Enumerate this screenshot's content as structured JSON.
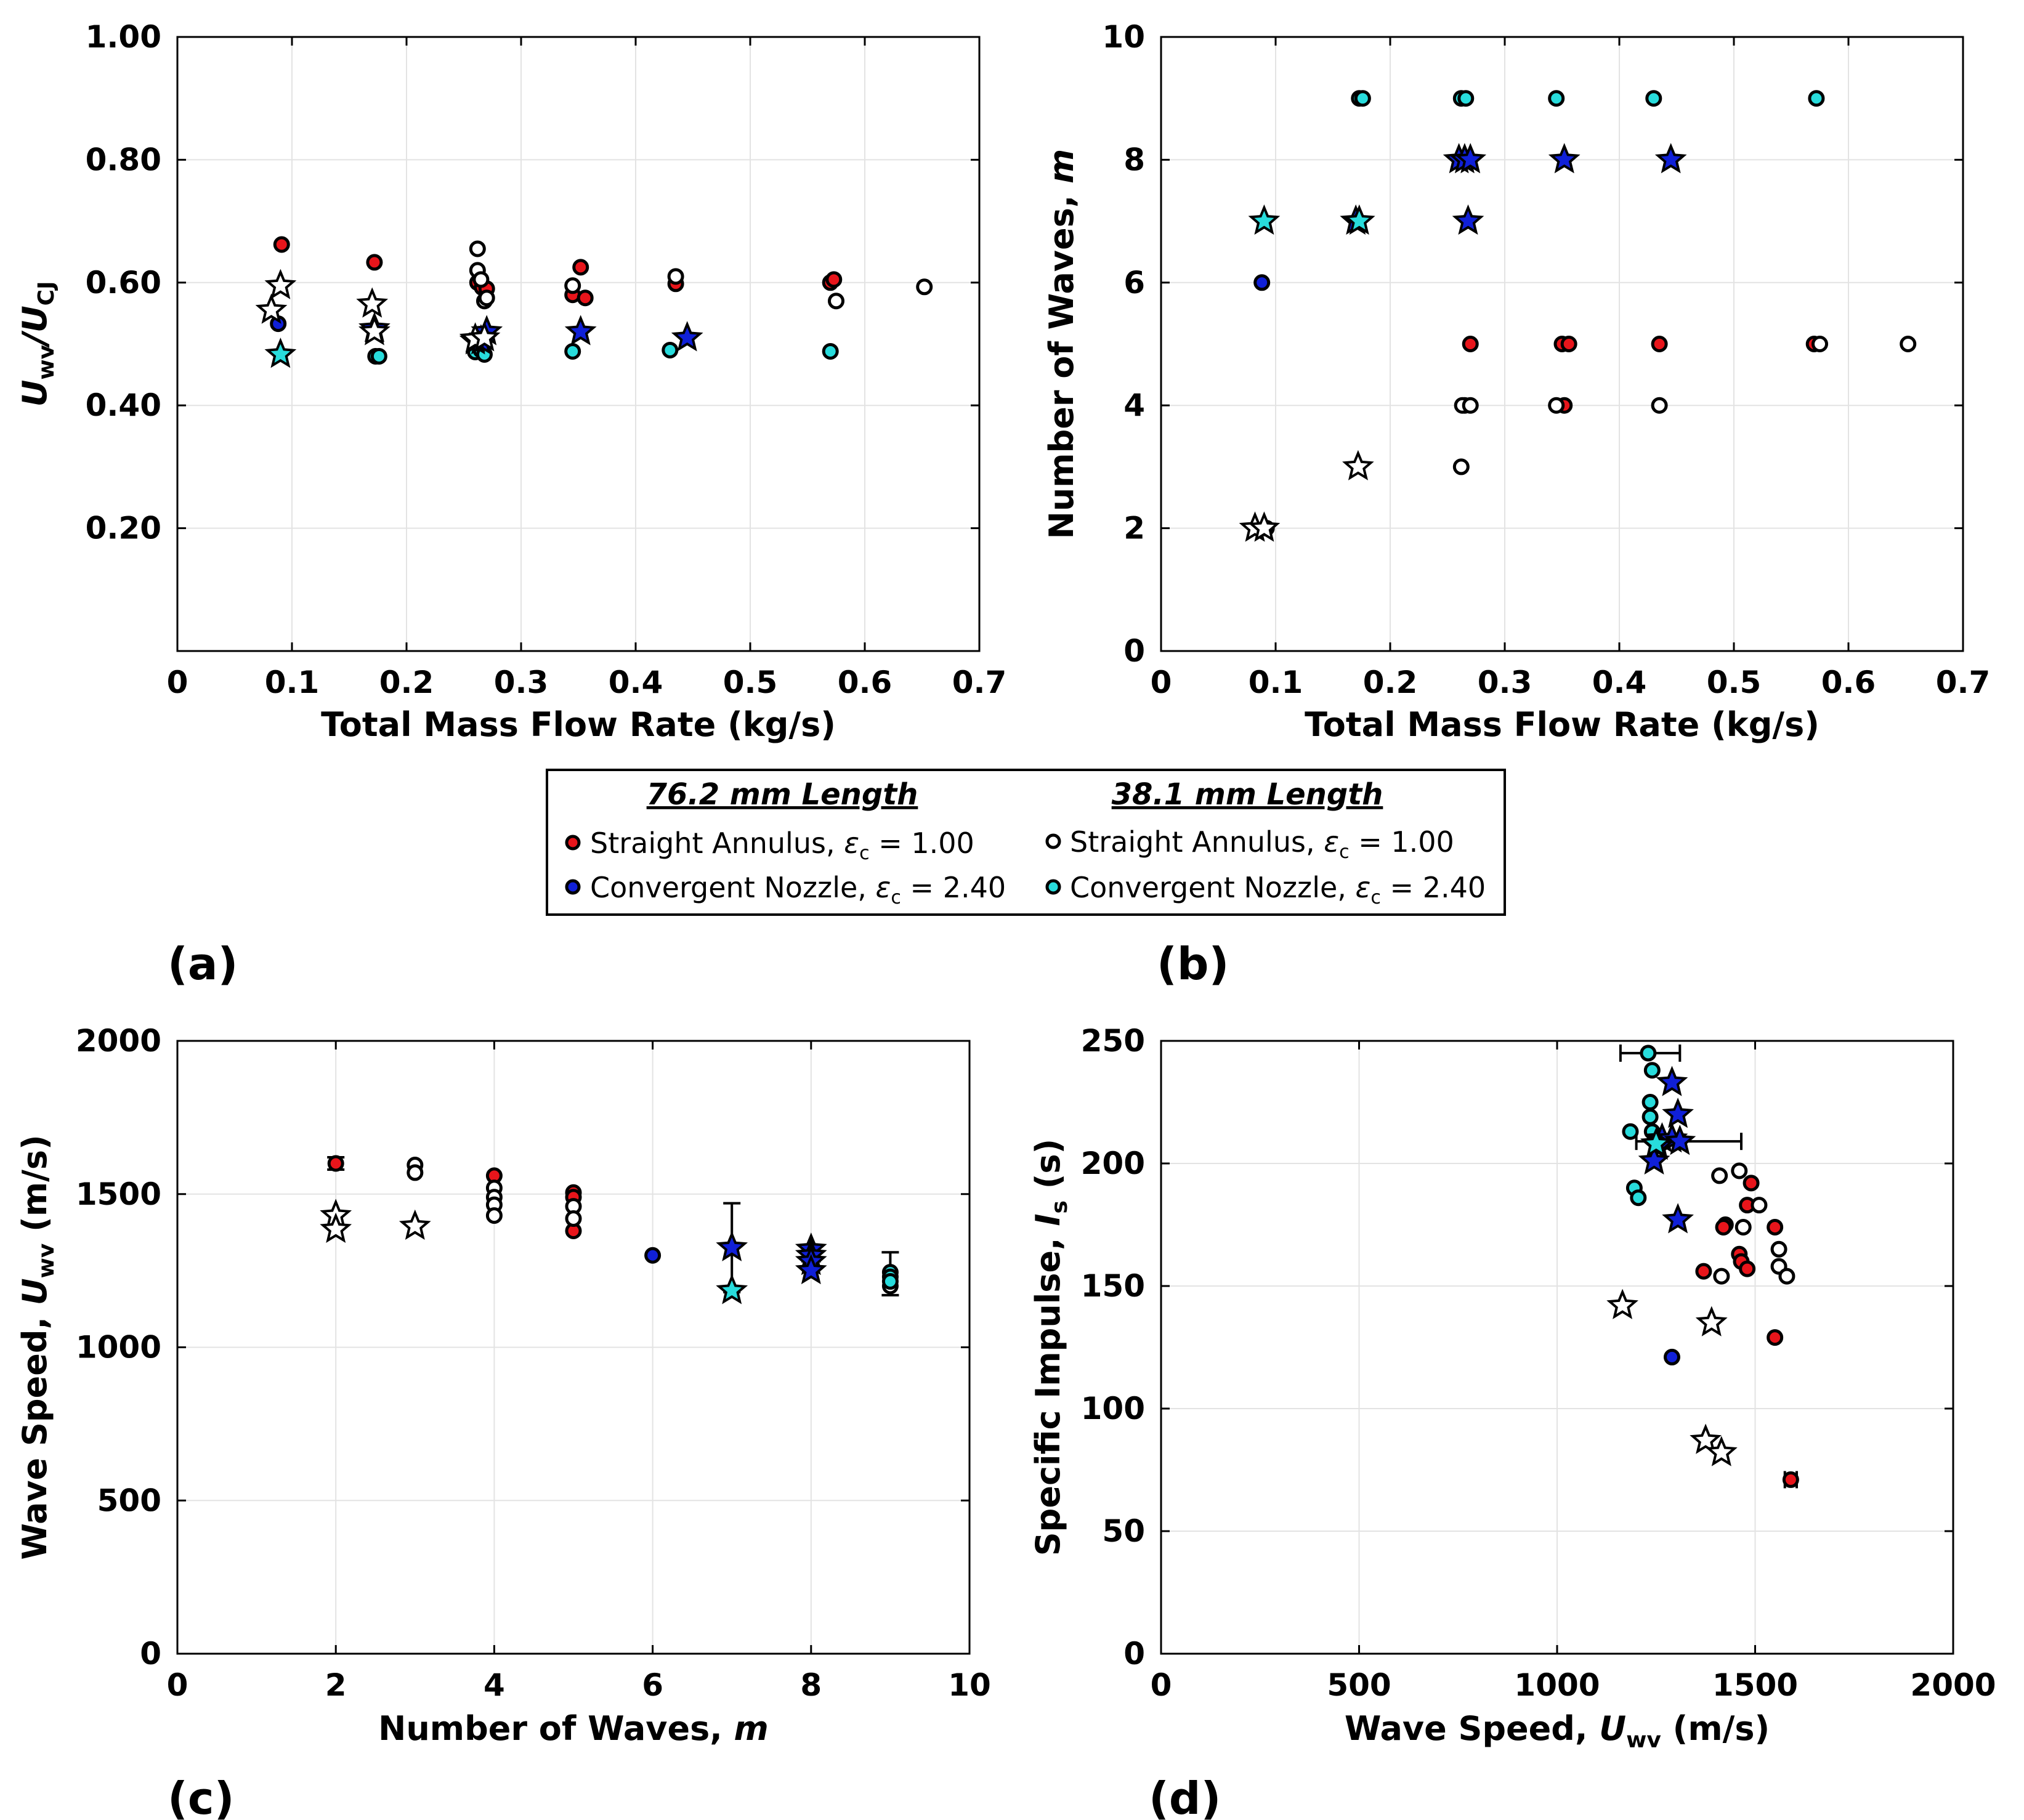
{
  "colors": {
    "red": "#e8151b",
    "blue": "#1020d8",
    "white": "#ffffff",
    "cyan": "#28dcdc",
    "star_gray": "#ffffff"
  },
  "legend": {
    "heading_left": "76.2 mm Length",
    "heading_right": "38.1 mm Length",
    "items": [
      {
        "key": "red",
        "label_pre": "Straight Annulus, ",
        "eps": "ε",
        "sub": "c",
        "label_post": " = 1.00"
      },
      {
        "key": "white",
        "label_pre": "Straight Annulus, ",
        "eps": "ε",
        "sub": "c",
        "label_post": " = 1.00"
      },
      {
        "key": "blue",
        "label_pre": "Convergent Nozzle, ",
        "eps": "ε",
        "sub": "c",
        "label_post": " = 2.40"
      },
      {
        "key": "cyan",
        "label_pre": "Convergent Nozzle, ",
        "eps": "ε",
        "sub": "c",
        "label_post": " = 2.40"
      }
    ]
  },
  "chart_data": [
    {
      "id": "a",
      "panel_label": "(a)",
      "type": "scatter",
      "xlabel": "Total Mass Flow Rate (kg/s)",
      "ylabel_parts": [
        "U",
        "wv",
        "/U",
        "CJ"
      ],
      "xlim": [
        0,
        0.7
      ],
      "ylim": [
        0,
        1.0
      ],
      "xticks": [
        "0",
        "0.1",
        "0.2",
        "0.3",
        "0.4",
        "0.5",
        "0.6",
        "0.7"
      ],
      "xtick_values": [
        0,
        0.1,
        0.2,
        0.3,
        0.4,
        0.5,
        0.6,
        0.7
      ],
      "yticks": [
        "0.20",
        "0.40",
        "0.60",
        "0.80",
        "1.00"
      ],
      "ytick_values": [
        0.2,
        0.4,
        0.6,
        0.8,
        1.0
      ],
      "grid": true,
      "series": [
        {
          "color": "red",
          "marker": "circle",
          "points": [
            [
              0.091,
              0.662
            ],
            [
              0.172,
              0.633
            ],
            [
              0.262,
              0.6
            ],
            [
              0.266,
              0.592
            ],
            [
              0.27,
              0.59
            ],
            [
              0.345,
              0.58
            ],
            [
              0.352,
              0.625
            ],
            [
              0.356,
              0.575
            ],
            [
              0.435,
              0.598
            ],
            [
              0.57,
              0.6
            ],
            [
              0.573,
              0.605
            ]
          ]
        },
        {
          "color": "white",
          "marker": "circle",
          "points": [
            [
              0.262,
              0.655
            ],
            [
              0.262,
              0.62
            ],
            [
              0.265,
              0.605
            ],
            [
              0.268,
              0.57
            ],
            [
              0.27,
              0.575
            ],
            [
              0.345,
              0.595
            ],
            [
              0.435,
              0.61
            ],
            [
              0.575,
              0.57
            ],
            [
              0.652,
              0.593
            ]
          ]
        },
        {
          "color": "blue",
          "marker": "circle",
          "points": [
            [
              0.088,
              0.533
            ]
          ]
        },
        {
          "color": "cyan",
          "marker": "circle",
          "points": [
            [
              0.173,
              0.48
            ],
            [
              0.176,
              0.48
            ],
            [
              0.26,
              0.487
            ],
            [
              0.265,
              0.49
            ],
            [
              0.268,
              0.483
            ],
            [
              0.345,
              0.488
            ],
            [
              0.43,
              0.49
            ],
            [
              0.57,
              0.488
            ]
          ]
        },
        {
          "color": "blue",
          "marker": "star",
          "points": [
            [
              0.172,
              0.525
            ],
            [
              0.26,
              0.505
            ],
            [
              0.265,
              0.505
            ],
            [
              0.27,
              0.52
            ],
            [
              0.352,
              0.52
            ],
            [
              0.445,
              0.51
            ]
          ]
        },
        {
          "color": "star_gray",
          "marker": "star",
          "points": [
            [
              0.082,
              0.555
            ],
            [
              0.09,
              0.595
            ],
            [
              0.17,
              0.565
            ],
            [
              0.172,
              0.52
            ],
            [
              0.26,
              0.508
            ],
            [
              0.268,
              0.51
            ]
          ]
        },
        {
          "color": "cyan",
          "marker": "star",
          "points": [
            [
              0.09,
              0.483
            ]
          ]
        }
      ]
    },
    {
      "id": "b",
      "panel_label": "(b)",
      "type": "scatter",
      "xlabel": "Total Mass Flow Rate (kg/s)",
      "ylabel_parts": [
        "Number of Waves, ",
        "m"
      ],
      "xlim": [
        0,
        0.7
      ],
      "ylim": [
        0,
        10
      ],
      "xticks": [
        "0",
        "0.1",
        "0.2",
        "0.3",
        "0.4",
        "0.5",
        "0.6",
        "0.7"
      ],
      "xtick_values": [
        0,
        0.1,
        0.2,
        0.3,
        0.4,
        0.5,
        0.6,
        0.7
      ],
      "yticks": [
        "0",
        "2",
        "4",
        "6",
        "8",
        "10"
      ],
      "ytick_values": [
        0,
        2,
        4,
        6,
        8,
        10
      ],
      "grid": true,
      "series": [
        {
          "color": "red",
          "marker": "circle",
          "points": [
            [
              0.27,
              5
            ],
            [
              0.35,
              5
            ],
            [
              0.356,
              5
            ],
            [
              0.435,
              5
            ],
            [
              0.57,
              5
            ],
            [
              0.265,
              4
            ],
            [
              0.352,
              4
            ]
          ]
        },
        {
          "color": "white",
          "marker": "circle",
          "points": [
            [
              0.092,
              2
            ],
            [
              0.263,
              4
            ],
            [
              0.27,
              4
            ],
            [
              0.262,
              3
            ],
            [
              0.345,
              4
            ],
            [
              0.435,
              4
            ],
            [
              0.575,
              5
            ],
            [
              0.652,
              5
            ]
          ]
        },
        {
          "color": "blue",
          "marker": "circle",
          "points": [
            [
              0.088,
              6
            ]
          ]
        },
        {
          "color": "cyan",
          "marker": "circle",
          "points": [
            [
              0.173,
              9
            ],
            [
              0.176,
              9
            ],
            [
              0.262,
              9
            ],
            [
              0.266,
              9
            ],
            [
              0.345,
              9
            ],
            [
              0.43,
              9
            ],
            [
              0.572,
              9
            ]
          ]
        },
        {
          "color": "blue",
          "marker": "star",
          "points": [
            [
              0.26,
              8
            ],
            [
              0.265,
              8
            ],
            [
              0.27,
              8
            ],
            [
              0.352,
              8
            ],
            [
              0.445,
              8
            ],
            [
              0.17,
              7
            ],
            [
              0.268,
              7
            ]
          ]
        },
        {
          "color": "star_gray",
          "marker": "star",
          "points": [
            [
              0.082,
              2
            ],
            [
              0.09,
              2
            ],
            [
              0.172,
              3
            ]
          ]
        },
        {
          "color": "cyan",
          "marker": "star",
          "points": [
            [
              0.09,
              7
            ],
            [
              0.173,
              7
            ]
          ]
        }
      ]
    },
    {
      "id": "c",
      "panel_label": "(c)",
      "type": "scatter",
      "xlabel_parts": [
        "Number of Waves, ",
        "m"
      ],
      "ylabel_parts": [
        "Wave Speed, ",
        "U",
        "wv",
        " (m/s)"
      ],
      "xlim": [
        0,
        10
      ],
      "ylim": [
        0,
        2000
      ],
      "xticks": [
        "0",
        "2",
        "4",
        "6",
        "8",
        "10"
      ],
      "xtick_values": [
        0,
        2,
        4,
        6,
        8,
        10
      ],
      "yticks": [
        "0",
        "500",
        "1000",
        "1500",
        "2000"
      ],
      "ytick_values": [
        0,
        500,
        1000,
        1500,
        2000
      ],
      "grid": true,
      "error_bars": [
        {
          "x": 2,
          "ylo": 1580,
          "yhi": 1620
        },
        {
          "x": 7,
          "ylo": 1180,
          "yhi": 1470
        },
        {
          "x": 9,
          "ylo": 1170,
          "yhi": 1310
        }
      ],
      "series": [
        {
          "color": "red",
          "marker": "circle",
          "points": [
            [
              2,
              1600
            ],
            [
              4,
              1560
            ],
            [
              5,
              1505
            ],
            [
              5,
              1490
            ],
            [
              5,
              1380
            ]
          ]
        },
        {
          "color": "white",
          "marker": "circle",
          "points": [
            [
              3,
              1595
            ],
            [
              3,
              1570
            ],
            [
              4,
              1520
            ],
            [
              4,
              1490
            ],
            [
              4,
              1465
            ],
            [
              4,
              1430
            ],
            [
              5,
              1460
            ],
            [
              5,
              1420
            ],
            [
              9,
              1200
            ]
          ]
        },
        {
          "color": "blue",
          "marker": "circle",
          "points": [
            [
              6,
              1300
            ]
          ]
        },
        {
          "color": "cyan",
          "marker": "circle",
          "points": [
            [
              9,
              1245
            ],
            [
              9,
              1230
            ],
            [
              9,
              1215
            ]
          ]
        },
        {
          "color": "blue",
          "marker": "star",
          "points": [
            [
              7,
              1325
            ],
            [
              8,
              1320
            ],
            [
              8,
              1300
            ],
            [
              8,
              1280
            ],
            [
              8,
              1250
            ]
          ]
        },
        {
          "color": "star_gray",
          "marker": "star",
          "points": [
            [
              2,
              1430
            ],
            [
              2,
              1385
            ],
            [
              3,
              1395
            ]
          ]
        },
        {
          "color": "cyan",
          "marker": "star",
          "points": [
            [
              7,
              1185
            ]
          ]
        }
      ]
    },
    {
      "id": "d",
      "panel_label": "(d)",
      "type": "scatter",
      "xlabel_parts": [
        "Wave Speed, ",
        "U",
        "wv",
        " (m/s)"
      ],
      "ylabel_parts": [
        "Specific Impulse, ",
        "I",
        "s",
        " (s)"
      ],
      "xlim": [
        0,
        2000
      ],
      "ylim": [
        0,
        250
      ],
      "xticks": [
        "0",
        "500",
        "1000",
        "1500",
        "2000"
      ],
      "xtick_values": [
        0,
        500,
        1000,
        1500,
        2000
      ],
      "yticks": [
        "0",
        "50",
        "100",
        "150",
        "200",
        "250"
      ],
      "ytick_values": [
        0,
        50,
        100,
        150,
        200,
        250
      ],
      "grid": true,
      "h_error_bars": [
        {
          "y": 245,
          "xlo": 1160,
          "xhi": 1310
        },
        {
          "y": 209,
          "xlo": 1200,
          "xhi": 1465
        },
        {
          "y": 71,
          "xlo": 1575,
          "xhi": 1605
        }
      ],
      "series": [
        {
          "color": "red",
          "marker": "circle",
          "points": [
            [
              1490,
              192
            ],
            [
              1480,
              183
            ],
            [
              1425,
              175
            ],
            [
              1420,
              174
            ],
            [
              1550,
              174
            ],
            [
              1460,
              163
            ],
            [
              1465,
              160
            ],
            [
              1480,
              157
            ],
            [
              1370,
              156
            ],
            [
              1550,
              129
            ],
            [
              1590,
              71
            ]
          ]
        },
        {
          "color": "white",
          "marker": "circle",
          "points": [
            [
              1460,
              197
            ],
            [
              1410,
              195
            ],
            [
              1510,
              183
            ],
            [
              1470,
              174
            ],
            [
              1560,
              165
            ],
            [
              1560,
              158
            ],
            [
              1580,
              154
            ],
            [
              1415,
              154
            ]
          ]
        },
        {
          "color": "blue",
          "marker": "circle",
          "points": [
            [
              1290,
              121
            ]
          ]
        },
        {
          "color": "cyan",
          "marker": "circle",
          "points": [
            [
              1230,
              245
            ],
            [
              1240,
              238
            ],
            [
              1235,
              225
            ],
            [
              1235,
              219
            ],
            [
              1240,
              213
            ],
            [
              1185,
              213
            ],
            [
              1195,
              190
            ],
            [
              1205,
              186
            ]
          ]
        },
        {
          "color": "blue",
          "marker": "star",
          "points": [
            [
              1290,
              233
            ],
            [
              1305,
              220
            ],
            [
              1265,
              210
            ],
            [
              1290,
              210
            ],
            [
              1310,
              209
            ],
            [
              1255,
              207
            ],
            [
              1245,
              201
            ],
            [
              1305,
              177
            ]
          ]
        },
        {
          "color": "star_gray",
          "marker": "star",
          "points": [
            [
              1165,
              142
            ],
            [
              1390,
              135
            ],
            [
              1375,
              87
            ],
            [
              1415,
              82
            ]
          ]
        },
        {
          "color": "cyan",
          "marker": "star",
          "points": [
            [
              1250,
              208
            ]
          ]
        }
      ]
    }
  ]
}
